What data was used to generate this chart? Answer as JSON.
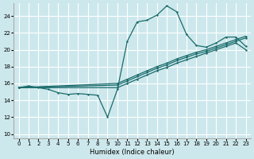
{
  "bg_color": "#cde8ec",
  "grid_color": "#ffffff",
  "line_color": "#1a6b6b",
  "xlabel": "Humidex (Indice chaleur)",
  "xlim": [
    -0.5,
    23.5
  ],
  "ylim": [
    9.5,
    25.5
  ],
  "xticks": [
    0,
    1,
    2,
    3,
    4,
    5,
    6,
    7,
    8,
    9,
    10,
    11,
    12,
    13,
    14,
    15,
    16,
    17,
    18,
    19,
    20,
    21,
    22,
    23
  ],
  "yticks": [
    10,
    12,
    14,
    16,
    18,
    20,
    22,
    24
  ],
  "curve_main_x": [
    0,
    1,
    2,
    3,
    4,
    5,
    6,
    7,
    8,
    9,
    10,
    11,
    12,
    13,
    14,
    15,
    16,
    17,
    18,
    19,
    20,
    21,
    22,
    23
  ],
  "curve_main_y": [
    15.5,
    15.7,
    15.5,
    15.3,
    14.9,
    14.7,
    14.8,
    14.7,
    14.6,
    12.0,
    15.3,
    21.0,
    23.3,
    23.5,
    24.1,
    25.2,
    24.5,
    21.8,
    20.5,
    20.3,
    20.8,
    21.5,
    21.5,
    20.4
  ],
  "curve_line1_x": [
    0,
    10,
    11,
    12,
    13,
    14,
    15,
    16,
    17,
    18,
    19,
    20,
    21,
    22,
    23
  ],
  "curve_line1_y": [
    15.5,
    15.8,
    16.3,
    16.8,
    17.3,
    17.8,
    18.2,
    18.7,
    19.1,
    19.5,
    19.8,
    20.2,
    20.6,
    21.0,
    21.4
  ],
  "curve_line2_x": [
    0,
    10,
    11,
    12,
    13,
    14,
    15,
    16,
    17,
    18,
    19,
    20,
    21,
    22,
    23
  ],
  "curve_line2_y": [
    15.5,
    16.0,
    16.5,
    17.0,
    17.5,
    18.0,
    18.4,
    18.9,
    19.3,
    19.7,
    20.0,
    20.4,
    20.8,
    21.2,
    21.6
  ],
  "curve_line3_x": [
    0,
    10,
    11,
    12,
    13,
    14,
    15,
    16,
    17,
    18,
    19,
    20,
    21,
    22,
    23
  ],
  "curve_line3_y": [
    15.5,
    15.5,
    16.0,
    16.5,
    17.0,
    17.5,
    17.9,
    18.4,
    18.8,
    19.2,
    19.6,
    20.0,
    20.4,
    20.8,
    20.0
  ]
}
